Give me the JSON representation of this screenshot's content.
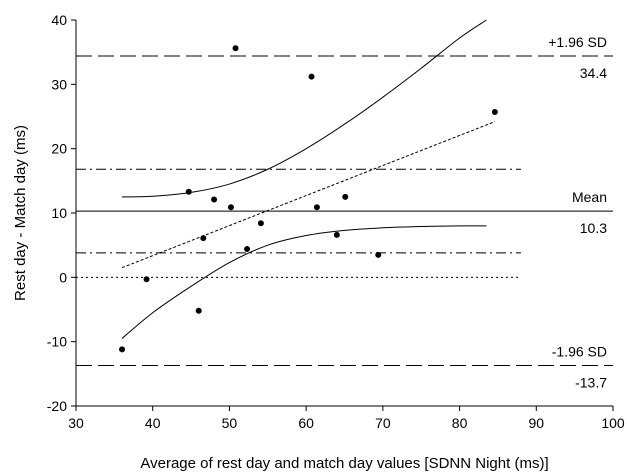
{
  "chart_data": {
    "type": "scatter",
    "xlabel": "Average of rest day and match day values  [SDNN Night (ms)]",
    "ylabel": "Rest day - Match day (ms)",
    "xlim": [
      30,
      100
    ],
    "ylim": [
      -20,
      40
    ],
    "x_ticks": [
      30,
      40,
      50,
      60,
      70,
      80,
      90,
      100
    ],
    "y_ticks": [
      -20,
      -10,
      0,
      10,
      20,
      30,
      40
    ],
    "points": [
      {
        "x": 36.0,
        "y": -11.2
      },
      {
        "x": 39.2,
        "y": -0.3
      },
      {
        "x": 44.7,
        "y": 13.3
      },
      {
        "x": 46.0,
        "y": -5.2
      },
      {
        "x": 46.6,
        "y": 6.1
      },
      {
        "x": 48.0,
        "y": 12.1
      },
      {
        "x": 50.2,
        "y": 10.9
      },
      {
        "x": 50.8,
        "y": 35.6
      },
      {
        "x": 52.3,
        "y": 4.4
      },
      {
        "x": 54.1,
        "y": 8.4
      },
      {
        "x": 60.7,
        "y": 31.2
      },
      {
        "x": 61.4,
        "y": 10.9
      },
      {
        "x": 64.0,
        "y": 6.6
      },
      {
        "x": 65.1,
        "y": 12.5
      },
      {
        "x": 69.4,
        "y": 3.5
      },
      {
        "x": 84.6,
        "y": 25.7
      }
    ],
    "reference_lines": {
      "mean": {
        "label": "Mean",
        "value": 10.3,
        "value_label": "10.3",
        "style": "solid",
        "x_range": [
          30,
          100
        ]
      },
      "upper_loa": {
        "label": "+1.96 SD",
        "value": 34.4,
        "value_label": "34.4",
        "style": "long-dash",
        "x_range": [
          30,
          100
        ]
      },
      "lower_loa": {
        "label": "-1.96 SD",
        "value": -13.7,
        "value_label": "-13.7",
        "style": "long-dash",
        "x_range": [
          30,
          100
        ]
      },
      "mean_ci_upper": {
        "value": 16.8,
        "style": "dash-dot",
        "x_range": [
          30,
          88
        ]
      },
      "mean_ci_lower": {
        "value": 3.8,
        "style": "dash-dot",
        "x_range": [
          30,
          88
        ]
      },
      "zero": {
        "value": 0,
        "style": "dotted",
        "x_range": [
          30,
          88
        ]
      }
    },
    "regression_line": {
      "style": "short-dash",
      "x": [
        36,
        84.6
      ],
      "y": [
        1.5,
        24.2
      ]
    },
    "ci_band_upper": {
      "x": [
        36,
        40,
        45,
        50,
        55,
        60,
        65,
        70,
        75,
        80,
        83.5
      ],
      "y": [
        12.5,
        12.6,
        13.2,
        14.5,
        16.8,
        20.0,
        23.8,
        28.0,
        32.5,
        37.2,
        40.0
      ]
    },
    "ci_band_lower": {
      "x": [
        36,
        40,
        45,
        50,
        55,
        60,
        65,
        70,
        75,
        80,
        83.5
      ],
      "y": [
        -9.5,
        -5.5,
        -1.4,
        2.3,
        5.0,
        6.5,
        7.3,
        7.7,
        7.9,
        8.0,
        8.0
      ]
    },
    "grid": false
  }
}
